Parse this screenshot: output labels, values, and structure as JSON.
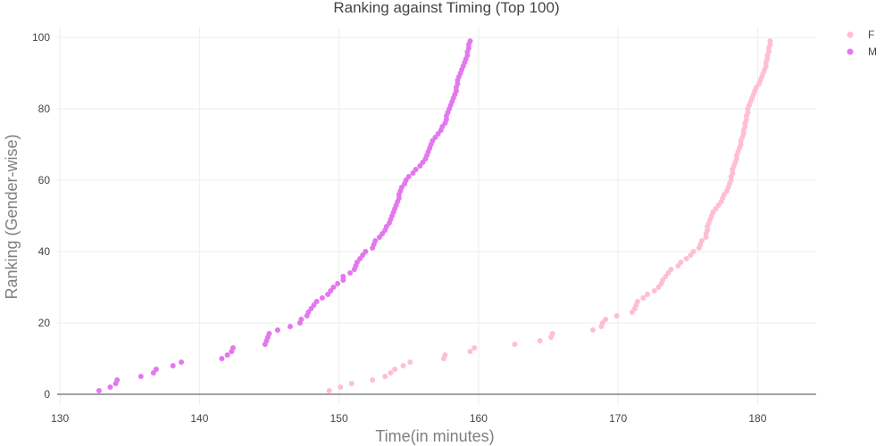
{
  "chart_data": {
    "type": "scatter",
    "title": "Ranking against Timing (Top 100)",
    "xlabel": "Time(in minutes)",
    "ylabel": "Ranking (Gender-wise)",
    "xlim": [
      129.8,
      184.2
    ],
    "ylim": [
      -3,
      103
    ],
    "xticks": [
      130,
      140,
      150,
      160,
      170,
      180
    ],
    "yticks": [
      0,
      20,
      40,
      60,
      80,
      100
    ],
    "grid": true,
    "legend_position": "top-right",
    "series": [
      {
        "name": "F",
        "color": "#ffbfd0",
        "points": [
          [
            149.3,
            1
          ],
          [
            150.1,
            2
          ],
          [
            150.9,
            3
          ],
          [
            152.4,
            4
          ],
          [
            153.3,
            5
          ],
          [
            153.7,
            6
          ],
          [
            154.0,
            7
          ],
          [
            154.6,
            8
          ],
          [
            155.1,
            9
          ],
          [
            157.5,
            10
          ],
          [
            157.6,
            11
          ],
          [
            159.4,
            12
          ],
          [
            159.7,
            13
          ],
          [
            162.6,
            14
          ],
          [
            164.4,
            15
          ],
          [
            165.2,
            16
          ],
          [
            165.3,
            17
          ],
          [
            168.2,
            18
          ],
          [
            168.8,
            19
          ],
          [
            168.9,
            20
          ],
          [
            169.1,
            21
          ],
          [
            169.9,
            22
          ],
          [
            171.0,
            23
          ],
          [
            171.2,
            24
          ],
          [
            171.3,
            25
          ],
          [
            171.4,
            26
          ],
          [
            171.8,
            27
          ],
          [
            172.1,
            28
          ],
          [
            172.6,
            29
          ],
          [
            172.9,
            30
          ],
          [
            173.1,
            31
          ],
          [
            173.2,
            32
          ],
          [
            173.4,
            33
          ],
          [
            173.6,
            34
          ],
          [
            173.8,
            35
          ],
          [
            174.3,
            36
          ],
          [
            174.5,
            37
          ],
          [
            174.9,
            38
          ],
          [
            175.2,
            39
          ],
          [
            175.4,
            40
          ],
          [
            175.8,
            41
          ],
          [
            175.9,
            42
          ],
          [
            176.0,
            43
          ],
          [
            176.3,
            44
          ],
          [
            176.3,
            45
          ],
          [
            176.4,
            46
          ],
          [
            176.4,
            47
          ],
          [
            176.5,
            48
          ],
          [
            176.6,
            49
          ],
          [
            176.7,
            50
          ],
          [
            176.8,
            51
          ],
          [
            177.0,
            52
          ],
          [
            177.2,
            53
          ],
          [
            177.4,
            54
          ],
          [
            177.5,
            55
          ],
          [
            177.6,
            56
          ],
          [
            177.8,
            57
          ],
          [
            177.9,
            58
          ],
          [
            178.0,
            59
          ],
          [
            178.1,
            60
          ],
          [
            178.1,
            61
          ],
          [
            178.2,
            62
          ],
          [
            178.2,
            63
          ],
          [
            178.3,
            64
          ],
          [
            178.4,
            65
          ],
          [
            178.5,
            66
          ],
          [
            178.5,
            67
          ],
          [
            178.6,
            68
          ],
          [
            178.7,
            69
          ],
          [
            178.8,
            70
          ],
          [
            178.8,
            71
          ],
          [
            178.9,
            72
          ],
          [
            179.0,
            73
          ],
          [
            179.0,
            74
          ],
          [
            179.1,
            75
          ],
          [
            179.1,
            76
          ],
          [
            179.2,
            77
          ],
          [
            179.2,
            78
          ],
          [
            179.3,
            79
          ],
          [
            179.3,
            80
          ],
          [
            179.4,
            81
          ],
          [
            179.5,
            82
          ],
          [
            179.6,
            83
          ],
          [
            179.7,
            84
          ],
          [
            179.8,
            85
          ],
          [
            179.9,
            86
          ],
          [
            180.1,
            87
          ],
          [
            180.2,
            88
          ],
          [
            180.3,
            89
          ],
          [
            180.4,
            90
          ],
          [
            180.5,
            91
          ],
          [
            180.6,
            92
          ],
          [
            180.6,
            93
          ],
          [
            180.7,
            94
          ],
          [
            180.7,
            95
          ],
          [
            180.8,
            96
          ],
          [
            180.8,
            97
          ],
          [
            180.9,
            98
          ],
          [
            180.9,
            99
          ]
        ]
      },
      {
        "name": "M",
        "color": "#e377ef",
        "points": [
          [
            132.8,
            1
          ],
          [
            133.6,
            2
          ],
          [
            134.0,
            3
          ],
          [
            134.1,
            4
          ],
          [
            135.8,
            5
          ],
          [
            136.7,
            6
          ],
          [
            136.9,
            7
          ],
          [
            138.1,
            8
          ],
          [
            138.7,
            9
          ],
          [
            141.6,
            10
          ],
          [
            142.0,
            11
          ],
          [
            142.3,
            12
          ],
          [
            142.4,
            13
          ],
          [
            144.7,
            14
          ],
          [
            144.8,
            15
          ],
          [
            144.9,
            16
          ],
          [
            145.0,
            17
          ],
          [
            145.6,
            18
          ],
          [
            146.5,
            19
          ],
          [
            147.2,
            20
          ],
          [
            147.3,
            21
          ],
          [
            147.7,
            22
          ],
          [
            147.8,
            23
          ],
          [
            148.0,
            24
          ],
          [
            148.2,
            25
          ],
          [
            148.4,
            26
          ],
          [
            148.8,
            27
          ],
          [
            149.2,
            28
          ],
          [
            149.4,
            29
          ],
          [
            149.6,
            30
          ],
          [
            149.9,
            31
          ],
          [
            150.3,
            32
          ],
          [
            150.3,
            33
          ],
          [
            150.8,
            34
          ],
          [
            151.1,
            35
          ],
          [
            151.2,
            36
          ],
          [
            151.3,
            37
          ],
          [
            151.5,
            38
          ],
          [
            151.7,
            39
          ],
          [
            151.9,
            40
          ],
          [
            152.4,
            41
          ],
          [
            152.5,
            42
          ],
          [
            152.6,
            43
          ],
          [
            152.9,
            44
          ],
          [
            153.1,
            45
          ],
          [
            153.3,
            46
          ],
          [
            153.4,
            47
          ],
          [
            153.6,
            48
          ],
          [
            153.7,
            49
          ],
          [
            153.8,
            50
          ],
          [
            153.9,
            51
          ],
          [
            154.0,
            52
          ],
          [
            154.1,
            53
          ],
          [
            154.2,
            54
          ],
          [
            154.3,
            55
          ],
          [
            154.3,
            56
          ],
          [
            154.4,
            57
          ],
          [
            154.5,
            58
          ],
          [
            154.7,
            59
          ],
          [
            154.8,
            60
          ],
          [
            155.0,
            61
          ],
          [
            155.3,
            62
          ],
          [
            155.5,
            63
          ],
          [
            155.8,
            64
          ],
          [
            156.0,
            65
          ],
          [
            156.2,
            66
          ],
          [
            156.3,
            67
          ],
          [
            156.4,
            68
          ],
          [
            156.5,
            69
          ],
          [
            156.6,
            70
          ],
          [
            156.7,
            71
          ],
          [
            156.9,
            72
          ],
          [
            157.1,
            73
          ],
          [
            157.3,
            74
          ],
          [
            157.4,
            75
          ],
          [
            157.6,
            76
          ],
          [
            157.7,
            77
          ],
          [
            157.7,
            78
          ],
          [
            157.8,
            79
          ],
          [
            157.9,
            80
          ],
          [
            158.0,
            81
          ],
          [
            158.1,
            82
          ],
          [
            158.2,
            83
          ],
          [
            158.3,
            84
          ],
          [
            158.4,
            85
          ],
          [
            158.4,
            86
          ],
          [
            158.5,
            87
          ],
          [
            158.5,
            88
          ],
          [
            158.6,
            89
          ],
          [
            158.7,
            90
          ],
          [
            158.8,
            91
          ],
          [
            158.9,
            92
          ],
          [
            159.0,
            93
          ],
          [
            159.1,
            94
          ],
          [
            159.2,
            95
          ],
          [
            159.2,
            96
          ],
          [
            159.3,
            97
          ],
          [
            159.3,
            98
          ],
          [
            159.4,
            99
          ]
        ]
      }
    ]
  }
}
